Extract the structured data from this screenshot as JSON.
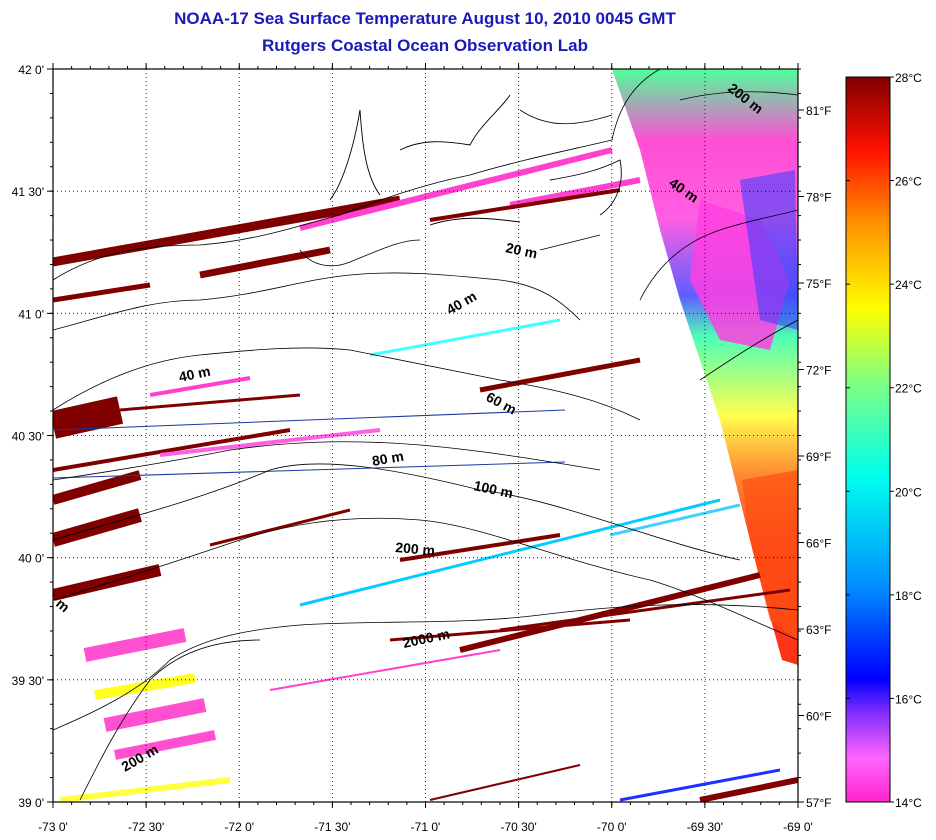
{
  "title": "NOAA-17 Sea Surface Temperature August 10, 2010 0045 GMT",
  "subtitle": "Rutgers Coastal Ocean Observation Lab",
  "map": {
    "lon_range": [
      -73,
      -69
    ],
    "lat_range": [
      39,
      42
    ],
    "lon_ticks": [
      "-73 0'",
      "-72 30'",
      "-72 0'",
      "-71 30'",
      "-71 0'",
      "-70 30'",
      "-70 0'",
      "-69 30'",
      "-69 0'"
    ],
    "lat_ticks": [
      "39 0'",
      "39 30'",
      "40 0'",
      "40 30'",
      "41 0'",
      "41 30'",
      "42 0'"
    ],
    "fahrenheit_ticks": [
      "57°F",
      "60°F",
      "63°F",
      "66°F",
      "69°F",
      "72°F",
      "75°F",
      "78°F",
      "81°F"
    ],
    "grid": true,
    "contour_labels": [
      "200 m",
      "40 m",
      "20 m",
      "40 m",
      "40 m",
      "60 m",
      "80 m",
      "100 m",
      "200 m",
      "2000 m",
      "200 m",
      "m"
    ]
  },
  "colorbar": {
    "range_c": [
      14,
      28
    ],
    "labels": [
      "28°C",
      "26°C",
      "24°C",
      "22°C",
      "20°C",
      "18°C",
      "16°C",
      "14°C"
    ],
    "colors": [
      "#800000",
      "#ff0000",
      "#ff8000",
      "#ffff00",
      "#00ffff",
      "#0000ff",
      "#ff00ff"
    ]
  }
}
